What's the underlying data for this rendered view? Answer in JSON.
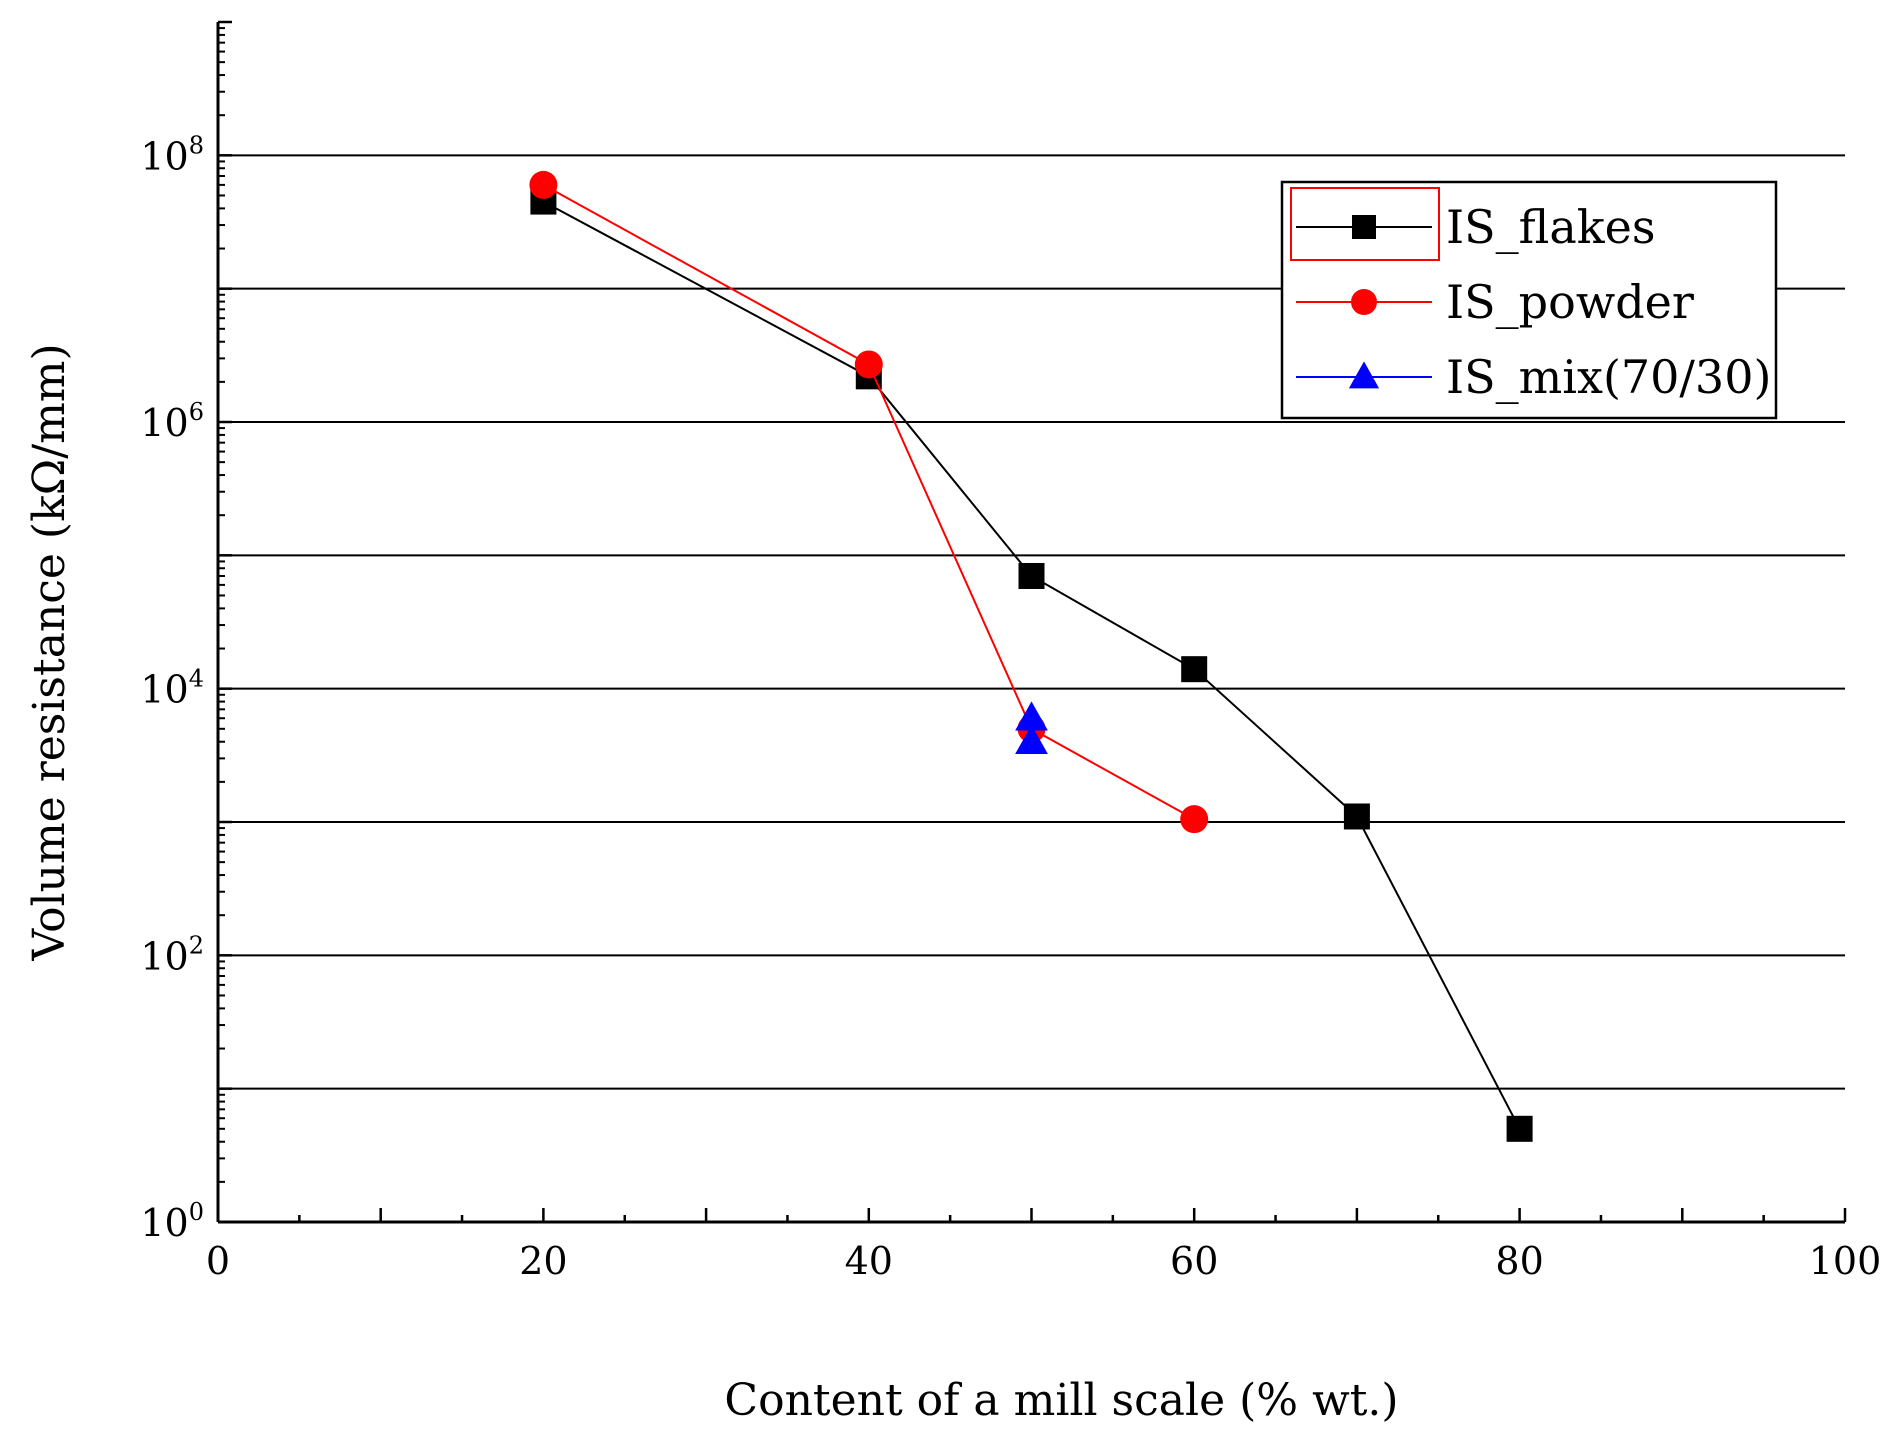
{
  "chart_data": {
    "type": "line",
    "title": "",
    "xlabel": "Content of a mill scale (% wt.)",
    "ylabel": "Volume resistance (kΩ/mm)",
    "xlim": [
      0,
      100
    ],
    "ylim": [
      1,
      1000000000
    ],
    "yscale": "log",
    "grid": "horizontal",
    "x_ticks": [
      {
        "value": 0,
        "label": "0"
      },
      {
        "value": 20,
        "label": "20"
      },
      {
        "value": 40,
        "label": "40"
      },
      {
        "value": 60,
        "label": "60"
      },
      {
        "value": 80,
        "label": "80"
      },
      {
        "value": 100,
        "label": "100"
      }
    ],
    "y_ticks": [
      {
        "value": 1,
        "base": "10",
        "exp": "0"
      },
      {
        "value": 100,
        "base": "10",
        "exp": "2"
      },
      {
        "value": 10000,
        "base": "10",
        "exp": "4"
      },
      {
        "value": 1000000,
        "base": "10",
        "exp": "6"
      },
      {
        "value": 100000000,
        "base": "10",
        "exp": "8"
      }
    ],
    "legend_position": "top-right",
    "series": [
      {
        "name": "IS_flakes",
        "color": "#000000",
        "marker": "square",
        "x": [
          20,
          40,
          50,
          60,
          70,
          80
        ],
        "y": [
          45000000,
          2200000,
          70000,
          14000,
          1100,
          5
        ]
      },
      {
        "name": "IS_powder",
        "color": "#ff0000",
        "marker": "circle",
        "x": [
          20,
          40,
          50,
          60
        ],
        "y": [
          60000000,
          2700000,
          5000,
          1050
        ]
      },
      {
        "name": "IS_mix(70/30)",
        "color": "#0000ff",
        "marker": "triangle",
        "x": [
          50,
          50
        ],
        "y": [
          6000,
          4000
        ]
      }
    ]
  }
}
